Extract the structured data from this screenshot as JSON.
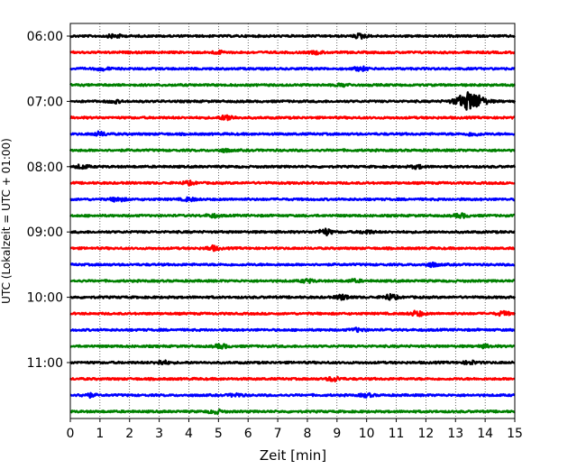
{
  "chart_data": {
    "type": "line",
    "title": "",
    "xlabel": "Zeit  [min]",
    "ylabel": "UTC (Lokalzeit = UTC + 01:00)",
    "xlim": [
      0,
      15
    ],
    "x_ticks": [
      "0",
      "1",
      "2",
      "3",
      "4",
      "5",
      "6",
      "7",
      "8",
      "9",
      "10",
      "11",
      "12",
      "13",
      "14",
      "15"
    ],
    "y_ticks": [
      "06:00",
      "07:00",
      "08:00",
      "09:00",
      "10:00",
      "11:00"
    ],
    "grid": "vertical dotted",
    "trace_count": 24,
    "trace_interval_min": 15,
    "color_cycle": [
      "#000000",
      "#ff0000",
      "#0000ff",
      "#008000"
    ],
    "events": [
      {
        "trace": 0,
        "t": 1.5,
        "amp": 0.6
      },
      {
        "trace": 0,
        "t": 9.8,
        "amp": 0.7
      },
      {
        "trace": 1,
        "t": 5.0,
        "amp": 0.4
      },
      {
        "trace": 1,
        "t": 8.3,
        "amp": 0.4
      },
      {
        "trace": 2,
        "t": 1.1,
        "amp": 0.4
      },
      {
        "trace": 2,
        "t": 9.8,
        "amp": 0.6
      },
      {
        "trace": 3,
        "t": 9.2,
        "amp": 0.4
      },
      {
        "trace": 4,
        "t": 13.5,
        "amp": 3.0
      },
      {
        "trace": 4,
        "t": 1.5,
        "amp": 0.4
      },
      {
        "trace": 5,
        "t": 5.3,
        "amp": 0.9
      },
      {
        "trace": 6,
        "t": 1.0,
        "amp": 0.6
      },
      {
        "trace": 6,
        "t": 13.6,
        "amp": 0.5
      },
      {
        "trace": 7,
        "t": 5.2,
        "amp": 0.4
      },
      {
        "trace": 8,
        "t": 0.4,
        "amp": 0.6
      },
      {
        "trace": 8,
        "t": 11.7,
        "amp": 0.5
      },
      {
        "trace": 9,
        "t": 4.0,
        "amp": 0.5
      },
      {
        "trace": 10,
        "t": 1.6,
        "amp": 0.7
      },
      {
        "trace": 10,
        "t": 4.0,
        "amp": 0.5
      },
      {
        "trace": 11,
        "t": 4.8,
        "amp": 0.5
      },
      {
        "trace": 11,
        "t": 13.2,
        "amp": 0.6
      },
      {
        "trace": 12,
        "t": 8.6,
        "amp": 1.0
      },
      {
        "trace": 12,
        "t": 10.0,
        "amp": 0.5
      },
      {
        "trace": 13,
        "t": 4.8,
        "amp": 0.7
      },
      {
        "trace": 14,
        "t": 12.2,
        "amp": 0.6
      },
      {
        "trace": 15,
        "t": 8.0,
        "amp": 0.5
      },
      {
        "trace": 15,
        "t": 9.6,
        "amp": 0.4
      },
      {
        "trace": 16,
        "t": 9.2,
        "amp": 0.8
      },
      {
        "trace": 16,
        "t": 10.8,
        "amp": 0.9
      },
      {
        "trace": 17,
        "t": 11.7,
        "amp": 0.8
      },
      {
        "trace": 17,
        "t": 14.6,
        "amp": 0.6
      },
      {
        "trace": 18,
        "t": 9.7,
        "amp": 0.5
      },
      {
        "trace": 19,
        "t": 5.1,
        "amp": 0.6
      },
      {
        "trace": 19,
        "t": 14.0,
        "amp": 0.4
      },
      {
        "trace": 20,
        "t": 3.1,
        "amp": 0.6
      },
      {
        "trace": 20,
        "t": 13.5,
        "amp": 0.5
      },
      {
        "trace": 21,
        "t": 8.9,
        "amp": 0.7
      },
      {
        "trace": 22,
        "t": 0.6,
        "amp": 0.6
      },
      {
        "trace": 22,
        "t": 5.6,
        "amp": 0.5
      },
      {
        "trace": 22,
        "t": 10.0,
        "amp": 0.5
      },
      {
        "trace": 23,
        "t": 4.9,
        "amp": 0.6
      }
    ]
  }
}
